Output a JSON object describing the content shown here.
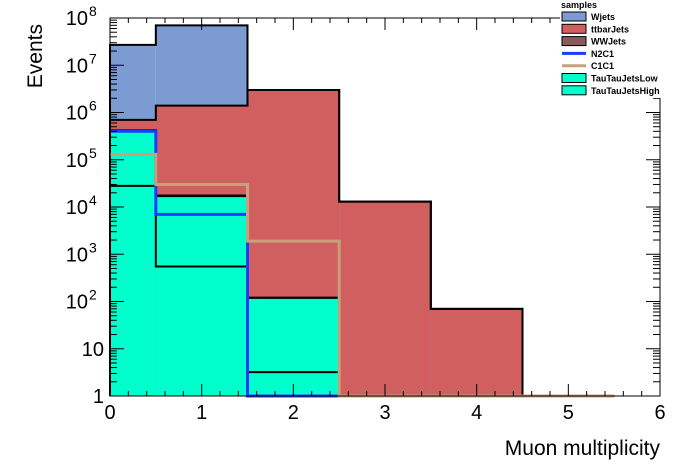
{
  "chart_data": {
    "type": "histogram-stacked",
    "xlabel": "Muon multiplicity",
    "ylabel": "Events",
    "xlim": [
      0,
      6
    ],
    "ylim": [
      1,
      100000000
    ],
    "yscale": "log",
    "x_ticks": [
      "0",
      "1",
      "2",
      "3",
      "4",
      "5",
      "6"
    ],
    "y_ticks": [
      {
        "value": 1,
        "base": "1",
        "exp": ""
      },
      {
        "value": 10,
        "base": "10",
        "exp": ""
      },
      {
        "value": 100,
        "base": "10",
        "exp": "2"
      },
      {
        "value": 1000,
        "base": "10",
        "exp": "3"
      },
      {
        "value": 10000,
        "base": "10",
        "exp": "4"
      },
      {
        "value": 100000,
        "base": "10",
        "exp": "5"
      },
      {
        "value": 1000000,
        "base": "10",
        "exp": "6"
      },
      {
        "value": 10000000,
        "base": "10",
        "exp": "7"
      },
      {
        "value": 100000000,
        "base": "10",
        "exp": "8"
      }
    ],
    "bin_edges": [
      0,
      0.5,
      1.5,
      2.5,
      3.5,
      4.5,
      5.5
    ],
    "stacked_cumulative": [
      {
        "name": "TauTauJetsHigh",
        "color": "#00ffcc",
        "values": [
          28000,
          550,
          3.2,
          1,
          1,
          1
        ]
      },
      {
        "name": "TauTauJetsLow",
        "color": "#00ffcc",
        "values": [
          400000,
          17000,
          120,
          1,
          1,
          1
        ]
      },
      {
        "name": "WWJets",
        "color": "#8c5a5a",
        "values": [
          420000,
          17500,
          120,
          1,
          1,
          1
        ]
      },
      {
        "name": "ttbarJets",
        "color": "#d15f5f",
        "values": [
          700000,
          1400000,
          3000000,
          13000,
          70,
          1
        ]
      },
      {
        "name": "Wjets",
        "color": "#7b9bd2",
        "values": [
          27000000,
          70000000,
          3000000,
          13000,
          70,
          1
        ]
      }
    ],
    "lines": [
      {
        "name": "N2C1",
        "color": "#1a3cff",
        "values": [
          400000,
          7000,
          1,
          1,
          1,
          1
        ]
      },
      {
        "name": "C1C1",
        "color": "#c8a07a",
        "values": [
          130000,
          30000,
          1900,
          1,
          1,
          1
        ]
      }
    ],
    "legend": {
      "title": "samples",
      "position": "top-right",
      "entries": [
        {
          "name": "Wjets",
          "kind": "fill",
          "color": "#7b9bd2"
        },
        {
          "name": "ttbarJets",
          "kind": "fill",
          "color": "#d15f5f"
        },
        {
          "name": "WWJets",
          "kind": "fill",
          "color": "#8c5a5a"
        },
        {
          "name": "N2C1",
          "kind": "line",
          "color": "#1a3cff"
        },
        {
          "name": "C1C1",
          "kind": "line",
          "color": "#c8a07a"
        },
        {
          "name": "TauTauJetsLow",
          "kind": "fill",
          "color": "#00ffcc"
        },
        {
          "name": "TauTauJetsHigh",
          "kind": "fill",
          "color": "#00ffcc"
        }
      ]
    }
  }
}
